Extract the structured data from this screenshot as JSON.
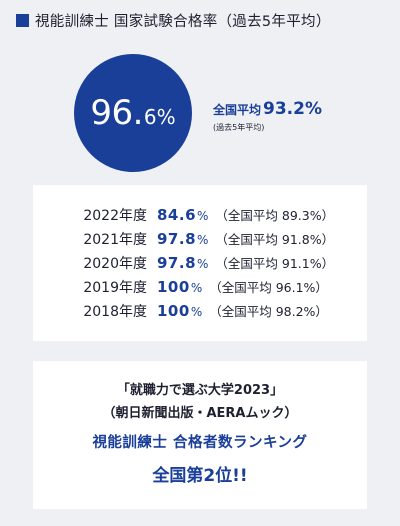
{
  "heading": "視能訓練士 国家試験合格率（過去5年平均）",
  "average": {
    "rate_int": "96.",
    "rate_dec": "6%",
    "national_label": "全国平均",
    "national_value": "93.2%",
    "national_note": "(過去5年平均)",
    "circle_color": "#1a3f98"
  },
  "years": [
    {
      "label": "2022年度",
      "rate": "84.6",
      "pct": "%",
      "national": "（全国平均 89.3%）"
    },
    {
      "label": "2021年度",
      "rate": "97.8",
      "pct": "%",
      "national": "（全国平均 91.8%）"
    },
    {
      "label": "2020年度",
      "rate": "97.8",
      "pct": "%",
      "national": "（全国平均 91.1%）"
    },
    {
      "label": "2019年度",
      "rate": "100",
      "pct": "%",
      "national": "（全国平均 96.1%）"
    },
    {
      "label": "2018年度",
      "rate": "100",
      "pct": "%",
      "national": "（全国平均 98.2%）"
    }
  ],
  "ranking": {
    "title": "「就職力で選ぶ大学2023」",
    "source": "（朝日新聞出版・AERAムック）",
    "category": "視能訓練士 合格者数ランキング",
    "result": "全国第2位!!"
  }
}
